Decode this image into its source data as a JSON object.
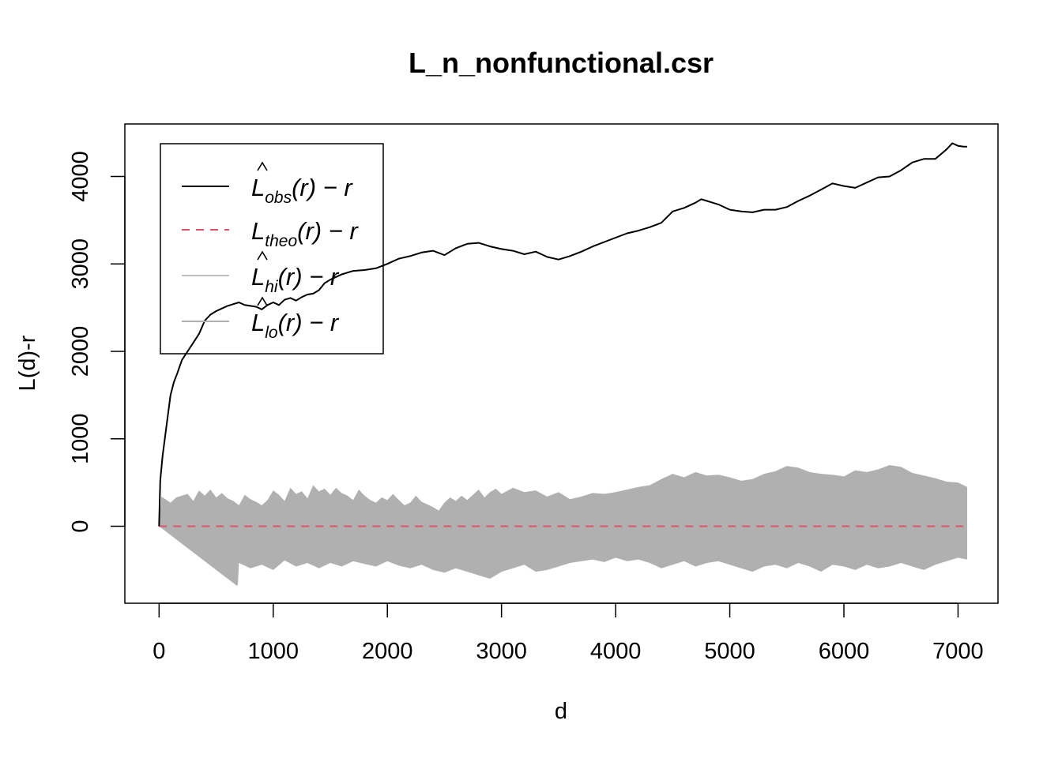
{
  "chart_data": {
    "type": "line",
    "title": "L_n_nonfunctional.csr",
    "xlabel": "d",
    "ylabel": "L(d)-r",
    "xlim": [
      -300,
      7350
    ],
    "ylim": [
      -880,
      4600
    ],
    "x_ticks": [
      0,
      1000,
      2000,
      3000,
      4000,
      5000,
      6000,
      7000
    ],
    "x_tick_labels": [
      "0",
      "1000",
      "2000",
      "3000",
      "4000",
      "5000",
      "6000",
      "7000"
    ],
    "y_ticks": [
      0,
      1000,
      2000,
      3000,
      4000
    ],
    "y_tick_labels": [
      "0",
      "1000",
      "2000",
      "3000",
      "4000"
    ],
    "grid": false,
    "legend_position": "top-left",
    "legend": [
      {
        "base": "L",
        "hat": true,
        "sub": "obs",
        "suffix": "(r) − r",
        "style": "solid",
        "color": "#000000"
      },
      {
        "base": "L",
        "hat": false,
        "sub": "theo",
        "suffix": "(r) − r",
        "style": "dashed",
        "color": "#DF536B"
      },
      {
        "base": "L",
        "hat": true,
        "sub": "hi",
        "suffix": "(r) − r",
        "style": "solid",
        "color": "#BEBEBE"
      },
      {
        "base": "L",
        "hat": true,
        "sub": "lo",
        "suffix": "(r) − r",
        "style": "solid",
        "color": "#B0B0B0"
      }
    ],
    "series": [
      {
        "key": "obs",
        "color": "#000000",
        "x": [
          0,
          10,
          30,
          60,
          100,
          130,
          160,
          200,
          250,
          300,
          350,
          400,
          450,
          500,
          550,
          600,
          650,
          700,
          750,
          800,
          850,
          900,
          950,
          1000,
          1050,
          1100,
          1150,
          1200,
          1250,
          1300,
          1350,
          1400,
          1450,
          1500,
          1550,
          1600,
          1700,
          1800,
          1900,
          2000,
          2100,
          2200,
          2300,
          2400,
          2500,
          2600,
          2700,
          2800,
          2900,
          3000,
          3100,
          3200,
          3300,
          3400,
          3500,
          3600,
          3700,
          3800,
          3900,
          4000,
          4100,
          4200,
          4300,
          4400,
          4500,
          4600,
          4700,
          4750,
          4800,
          4900,
          5000,
          5100,
          5200,
          5300,
          5400,
          5500,
          5600,
          5700,
          5800,
          5900,
          6000,
          6100,
          6200,
          6300,
          6400,
          6500,
          6600,
          6700,
          6800,
          6900,
          6950,
          7000,
          7050,
          7080
        ],
        "y": [
          0,
          520,
          800,
          1100,
          1500,
          1650,
          1750,
          1900,
          2000,
          2100,
          2200,
          2350,
          2420,
          2460,
          2490,
          2520,
          2540,
          2560,
          2530,
          2520,
          2510,
          2480,
          2530,
          2560,
          2530,
          2590,
          2610,
          2580,
          2620,
          2650,
          2660,
          2700,
          2780,
          2820,
          2850,
          2880,
          2920,
          2930,
          2950,
          3000,
          3060,
          3090,
          3130,
          3150,
          3100,
          3180,
          3230,
          3240,
          3200,
          3170,
          3150,
          3110,
          3140,
          3080,
          3050,
          3090,
          3140,
          3200,
          3250,
          3300,
          3350,
          3380,
          3420,
          3470,
          3600,
          3640,
          3700,
          3740,
          3720,
          3680,
          3620,
          3600,
          3590,
          3620,
          3620,
          3650,
          3720,
          3780,
          3850,
          3920,
          3890,
          3870,
          3930,
          3990,
          4000,
          4070,
          4160,
          4200,
          4200,
          4310,
          4380,
          4350,
          4340,
          4340
        ]
      },
      {
        "key": "theo",
        "color": "#DF536B",
        "x": [
          0,
          7080
        ],
        "y": [
          0,
          0
        ]
      },
      {
        "key": "hi",
        "color": "#B0B0B0",
        "x": [
          0,
          20,
          100,
          150,
          250,
          300,
          350,
          400,
          450,
          500,
          550,
          600,
          650,
          700,
          750,
          800,
          850,
          900,
          950,
          1000,
          1050,
          1100,
          1150,
          1200,
          1250,
          1300,
          1350,
          1400,
          1450,
          1500,
          1550,
          1600,
          1650,
          1700,
          1750,
          1800,
          1850,
          1900,
          1950,
          2000,
          2050,
          2100,
          2150,
          2200,
          2250,
          2300,
          2350,
          2400,
          2450,
          2500,
          2550,
          2600,
          2650,
          2700,
          2750,
          2800,
          2850,
          2900,
          2950,
          3000,
          3100,
          3200,
          3300,
          3400,
          3500,
          3600,
          3700,
          3800,
          3900,
          4000,
          4100,
          4200,
          4300,
          4400,
          4500,
          4600,
          4700,
          4800,
          4900,
          5000,
          5100,
          5200,
          5300,
          5400,
          5500,
          5600,
          5700,
          5800,
          5900,
          6000,
          6100,
          6200,
          6300,
          6400,
          6500,
          6600,
          6700,
          6800,
          6900,
          7000,
          7080
        ],
        "y": [
          0,
          340,
          270,
          330,
          370,
          290,
          410,
          350,
          420,
          330,
          380,
          320,
          290,
          240,
          360,
          310,
          280,
          240,
          300,
          410,
          360,
          290,
          440,
          370,
          400,
          320,
          470,
          400,
          430,
          360,
          440,
          380,
          350,
          300,
          420,
          350,
          300,
          270,
          330,
          300,
          370,
          300,
          240,
          270,
          350,
          280,
          250,
          220,
          180,
          270,
          330,
          290,
          350,
          300,
          360,
          420,
          330,
          390,
          430,
          370,
          440,
          390,
          410,
          340,
          390,
          310,
          340,
          380,
          370,
          390,
          420,
          450,
          470,
          540,
          600,
          560,
          620,
          580,
          590,
          560,
          520,
          540,
          600,
          630,
          690,
          670,
          620,
          600,
          590,
          570,
          640,
          620,
          650,
          700,
          680,
          610,
          580,
          550,
          510,
          500,
          450
        ]
      },
      {
        "key": "lo",
        "color": "#B0B0B0",
        "x": [
          0,
          680,
          690,
          700,
          800,
          900,
          1000,
          1100,
          1200,
          1300,
          1400,
          1500,
          1600,
          1700,
          1800,
          1900,
          2000,
          2100,
          2200,
          2300,
          2400,
          2500,
          2600,
          2700,
          2800,
          2900,
          3000,
          3100,
          3200,
          3300,
          3400,
          3500,
          3600,
          3700,
          3800,
          3900,
          4000,
          4100,
          4200,
          4300,
          4400,
          4500,
          4600,
          4700,
          4800,
          4900,
          5000,
          5100,
          5200,
          5300,
          5400,
          5500,
          5600,
          5700,
          5800,
          5900,
          6000,
          6100,
          6200,
          6300,
          6400,
          6500,
          6600,
          6700,
          6800,
          6900,
          7000,
          7080
        ],
        "y": [
          0,
          -680,
          -670,
          -420,
          -480,
          -440,
          -500,
          -390,
          -460,
          -420,
          -480,
          -420,
          -460,
          -400,
          -430,
          -460,
          -400,
          -450,
          -480,
          -440,
          -500,
          -530,
          -480,
          -520,
          -560,
          -600,
          -520,
          -480,
          -440,
          -520,
          -500,
          -460,
          -420,
          -400,
          -380,
          -410,
          -360,
          -400,
          -380,
          -420,
          -480,
          -440,
          -400,
          -460,
          -420,
          -400,
          -440,
          -480,
          -520,
          -460,
          -440,
          -480,
          -420,
          -460,
          -520,
          -440,
          -460,
          -500,
          -440,
          -480,
          -460,
          -420,
          -460,
          -500,
          -440,
          -400,
          -360,
          -380
        ]
      }
    ]
  }
}
